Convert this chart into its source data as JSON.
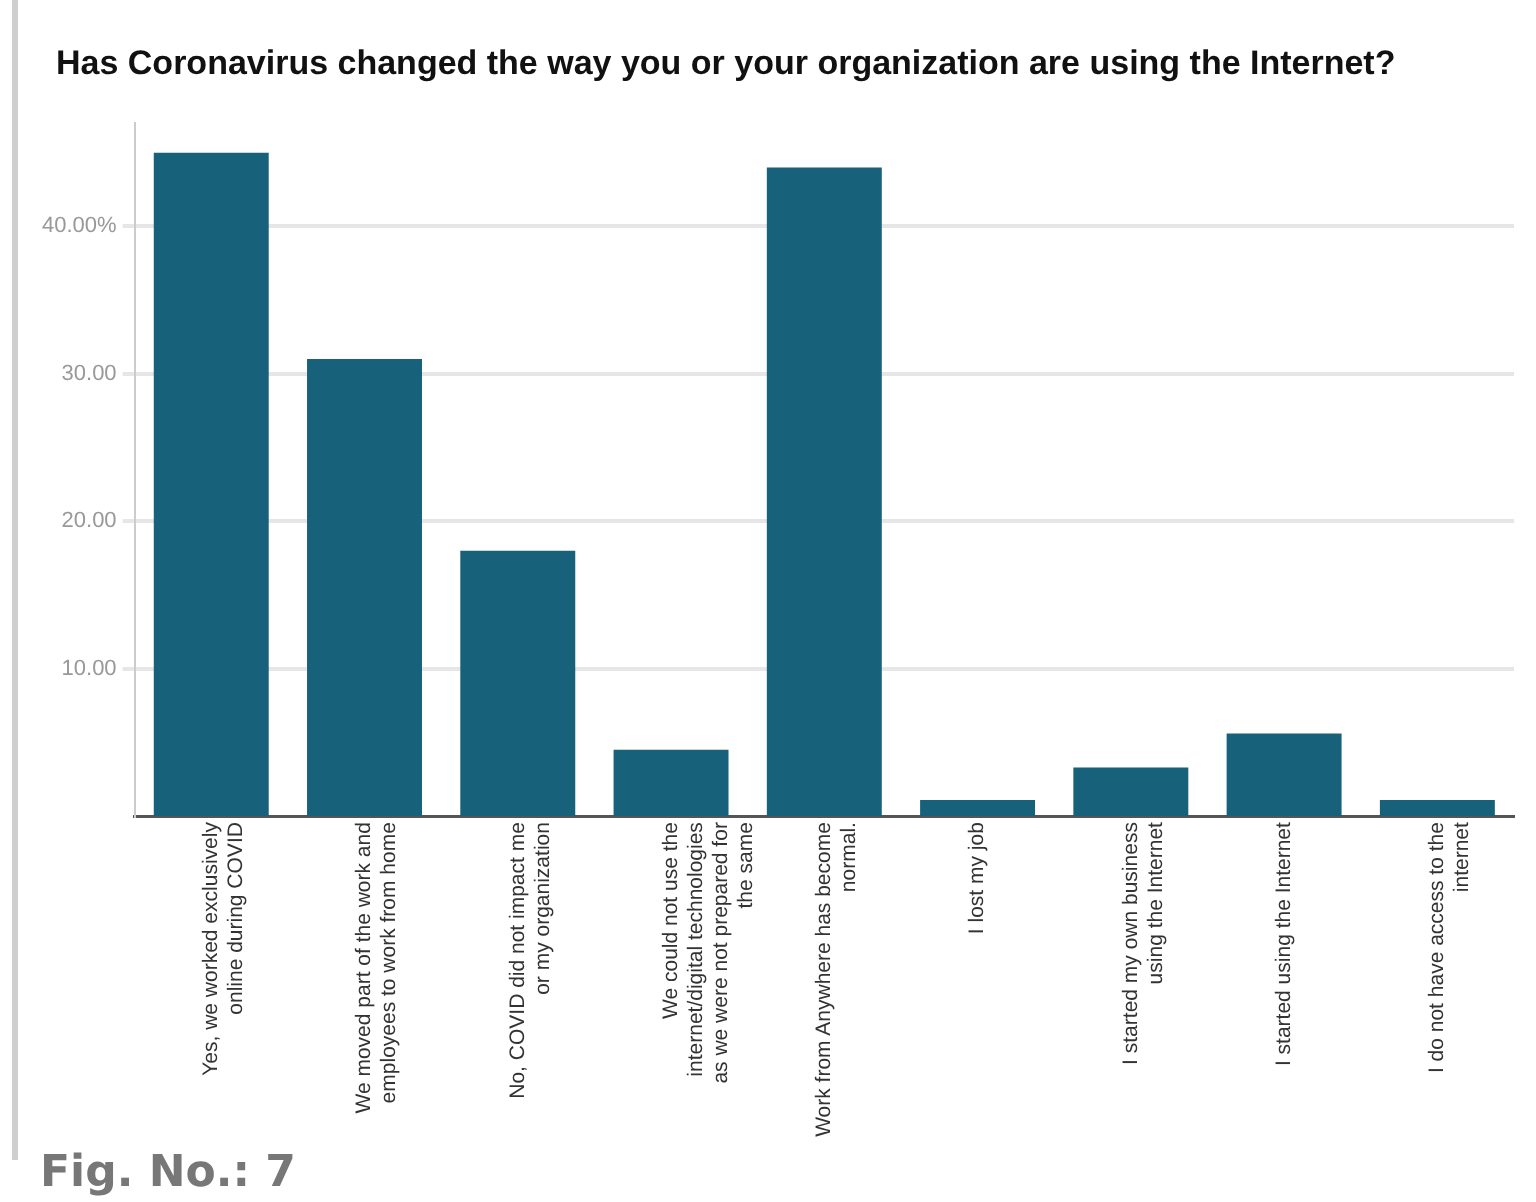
{
  "chart_data": {
    "type": "bar",
    "title": "Has Coronavirus changed the way you or your organization are using the Internet?",
    "categories": [
      "Yes, we worked exclusively online during COVID",
      "We moved part of the work and employees to work from home",
      "No, COVID did not impact me or my organization",
      "We could not use the internet/digital technologies as we were not prepared for the same",
      "Work from Anywhere has become normal.",
      "I lost my job",
      "I started my own business using the Internet",
      "I started using the Internet",
      "I do not have access to the internet"
    ],
    "values": [
      45,
      31,
      18,
      4.5,
      44,
      1.1,
      3.3,
      5.6,
      1.1
    ],
    "color": "#17617b",
    "ylim": [
      0,
      47
    ],
    "yticks": [
      {
        "value": 10,
        "label": "10.00"
      },
      {
        "value": 20,
        "label": "20.00"
      },
      {
        "value": 30,
        "label": "30.00"
      },
      {
        "value": 40,
        "label": "40.00%"
      }
    ],
    "grid": "y",
    "annotations": [
      "Fig. No.: 7"
    ]
  }
}
